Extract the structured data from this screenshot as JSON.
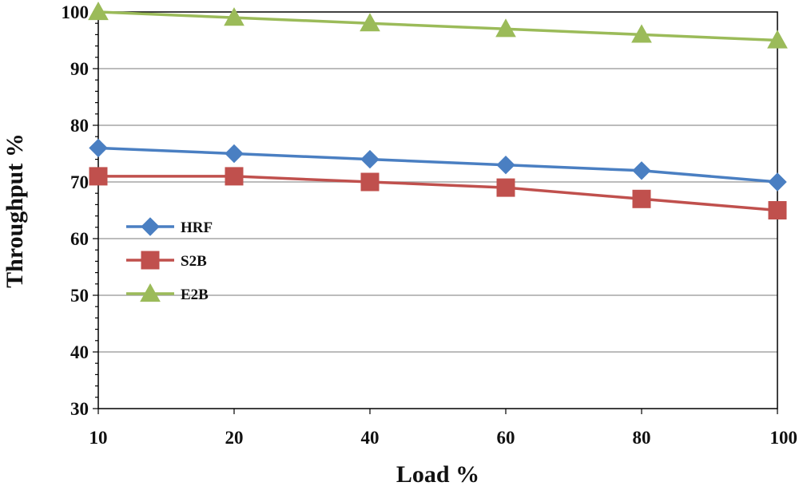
{
  "chart_data": {
    "type": "line",
    "title": "",
    "xlabel": "Load %",
    "ylabel": "Throughput %",
    "x": [
      10,
      20,
      40,
      60,
      80,
      100
    ],
    "xtick_labels": [
      "10",
      "20",
      "40",
      "60",
      "80",
      "100"
    ],
    "yticks": [
      30,
      40,
      50,
      60,
      70,
      80,
      90,
      100
    ],
    "ytick_labels": [
      "30",
      "40",
      "50",
      "60",
      "70",
      "80",
      "90",
      "100"
    ],
    "ylim": [
      30,
      100
    ],
    "grid": "horizontal",
    "legend_position": "left",
    "series": [
      {
        "name": "HRF",
        "color": "#4a7fc2",
        "marker": "diamond",
        "values": [
          76,
          75,
          74,
          73,
          72,
          70
        ]
      },
      {
        "name": "S2B",
        "color": "#c0504d",
        "marker": "square",
        "values": [
          71,
          71,
          70,
          69,
          67,
          65
        ]
      },
      {
        "name": "E2B",
        "color": "#9bbb59",
        "marker": "triangle",
        "values": [
          100,
          99,
          98,
          97,
          96,
          95
        ]
      }
    ]
  }
}
